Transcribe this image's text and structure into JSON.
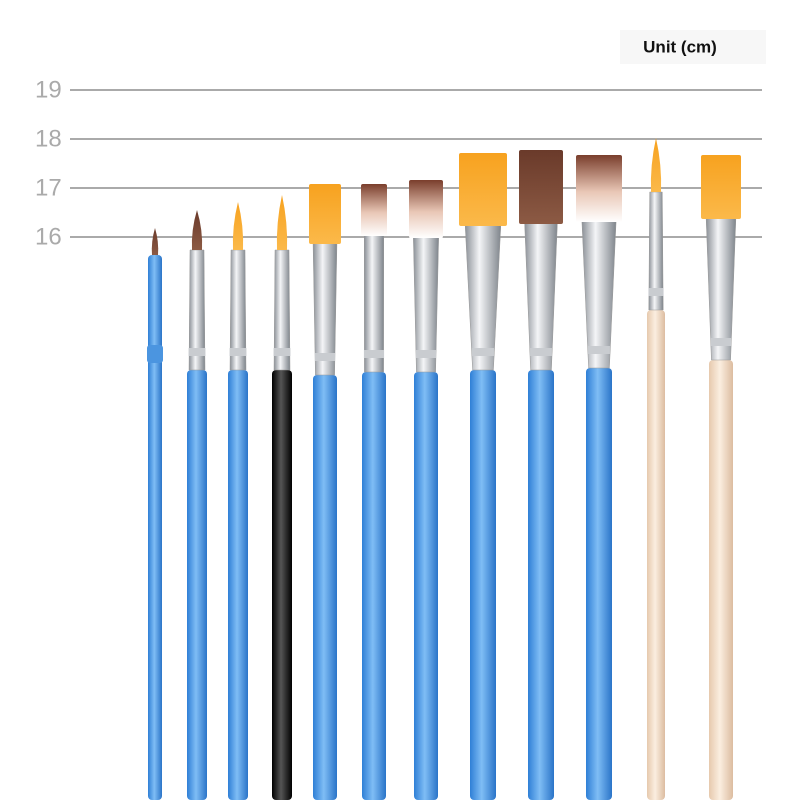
{
  "unit_label": "Unit (cm)",
  "scale": {
    "ticks": [
      "19",
      "18",
      "17",
      "16"
    ]
  }
}
